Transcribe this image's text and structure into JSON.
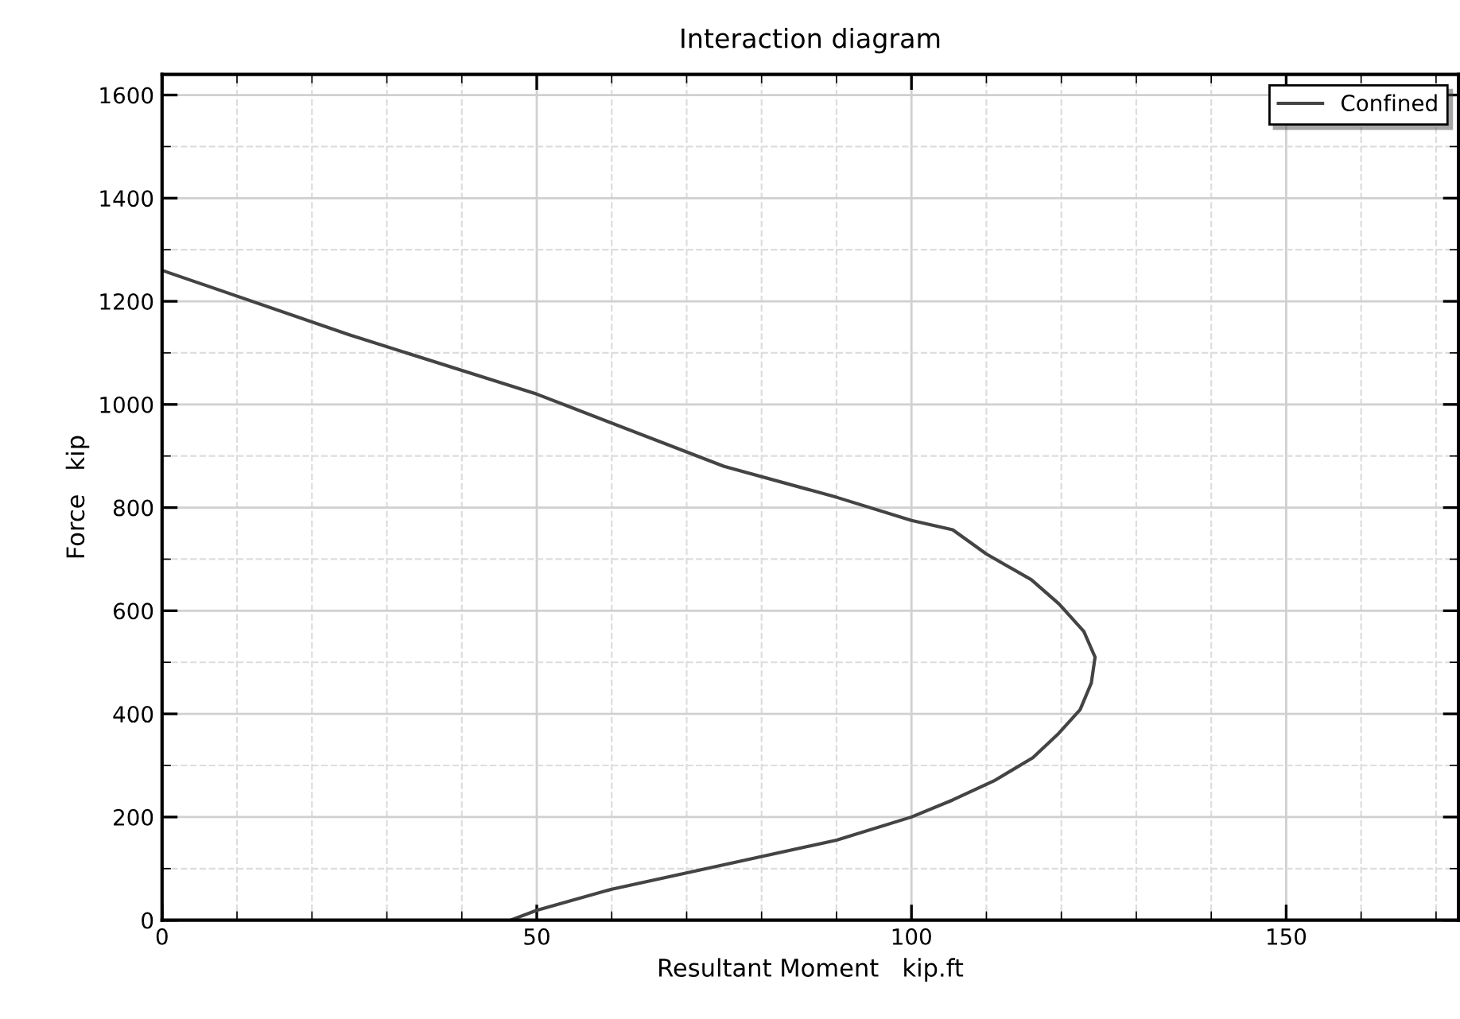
{
  "chart_data": {
    "type": "line",
    "title": "Interaction diagram",
    "xlabel": "Resultant Moment   kip.ft",
    "ylabel": "Force   kip",
    "xlim": [
      0,
      173
    ],
    "ylim": [
      0,
      1640
    ],
    "xticks": [
      0,
      50,
      100,
      150
    ],
    "yticks": [
      0,
      200,
      400,
      600,
      800,
      1000,
      1200,
      1400,
      1600
    ],
    "grid": true,
    "legend": "top right",
    "marker": "none",
    "line_style": "solid",
    "series": [
      {
        "name": "Confined",
        "color": "#444444",
        "x": [
          0,
          25,
          50,
          75,
          90,
          100,
          105.5,
          110,
          116,
          119.7,
          123,
          124.5,
          124,
          122.5,
          119.5,
          116.2,
          111,
          105.5,
          100,
          90,
          75.8,
          60,
          50,
          46.5
        ],
        "values": [
          1260,
          1135,
          1020,
          880,
          820,
          775,
          757,
          710,
          660,
          613,
          560,
          510,
          460,
          408,
          360,
          315,
          270,
          233,
          200,
          155,
          110,
          60,
          19,
          0
        ]
      }
    ]
  }
}
